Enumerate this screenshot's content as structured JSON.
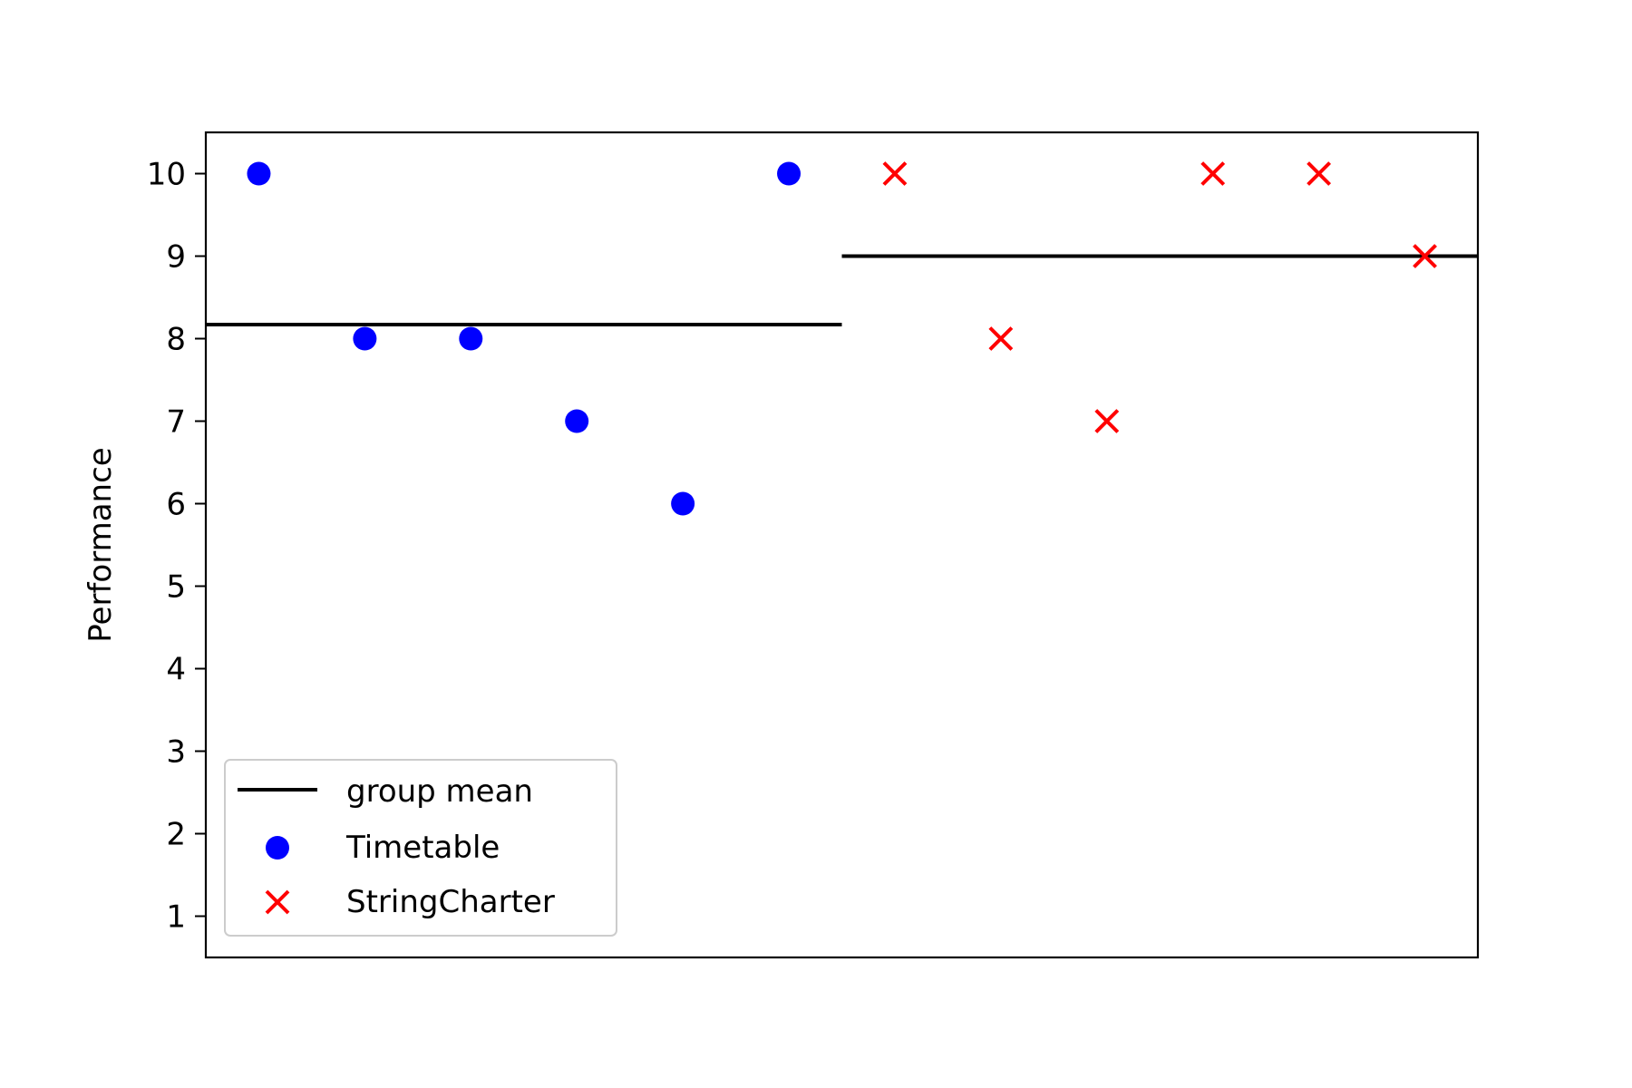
{
  "chart_data": {
    "type": "scatter",
    "xlabel": "",
    "ylabel": "Performance",
    "xlim": [
      -0.5,
      11.5
    ],
    "ylim": [
      0.5,
      10.5
    ],
    "yticks": [
      1,
      2,
      3,
      4,
      5,
      6,
      7,
      8,
      9,
      10
    ],
    "x_ticks_visible": false,
    "grid": false,
    "legend": "lower-left",
    "series": [
      {
        "name": "Timetable",
        "marker": "circle",
        "color": "#0000ff",
        "x": [
          0,
          1,
          2,
          3,
          4,
          5
        ],
        "y": [
          10,
          8,
          8,
          7,
          6,
          10
        ]
      },
      {
        "name": "StringCharter",
        "marker": "x",
        "color": "#ff0000",
        "x": [
          6,
          7,
          8,
          9,
          10,
          11
        ],
        "y": [
          10,
          8,
          7,
          10,
          10,
          9
        ]
      }
    ],
    "group_means": {
      "name": "group mean",
      "color": "#000000",
      "segments": [
        {
          "x_range": [
            -0.5,
            5.5
          ],
          "y": 8.17
        },
        {
          "x_range": [
            5.5,
            11.5
          ],
          "y": 9.0
        }
      ]
    }
  }
}
